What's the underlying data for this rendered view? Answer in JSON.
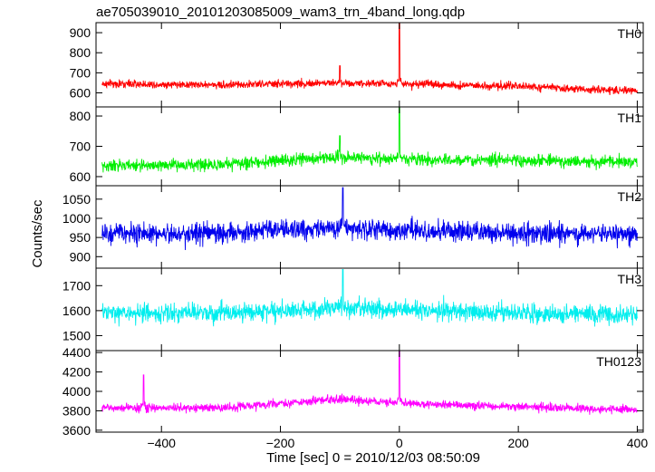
{
  "chart_data": {
    "type": "line",
    "title": "ae705039010_20101203085009_wam3_trn_4band_long.qdp",
    "xlabel": "Time [sec] 0 = 2010/12/03 08:50:09",
    "ylabel": "Counts/sec",
    "xlim": [
      -510,
      410
    ],
    "x_ticks": [
      -400,
      -200,
      0,
      200,
      400
    ],
    "x_tick_labels": [
      "−400",
      "−200",
      "0",
      "200",
      "400"
    ],
    "panels": [
      {
        "label": "TH0",
        "color": "#ff0000",
        "ylim": [
          530,
          950
        ],
        "y_ticks": [
          600,
          700,
          800,
          900
        ],
        "y_tick_labels": [
          "600",
          "700",
          "800",
          "900"
        ],
        "series": {
          "baseline_points": [
            [
              -500,
              645
            ],
            [
              -300,
              640
            ],
            [
              -100,
              650
            ],
            [
              0,
              645
            ],
            [
              200,
              632
            ],
            [
              400,
              608
            ]
          ],
          "noise_amplitude": 22,
          "spikes": [
            [
              -100,
              735
            ],
            [
              0,
              945
            ]
          ]
        }
      },
      {
        "label": "TH1",
        "color": "#00ee00",
        "ylim": [
          570,
          830
        ],
        "y_ticks": [
          600,
          700,
          800
        ],
        "y_tick_labels": [
          "600",
          "700",
          "800"
        ],
        "series": {
          "baseline_points": [
            [
              -500,
              635
            ],
            [
              -300,
              640
            ],
            [
              -100,
              665
            ],
            [
              0,
              658
            ],
            [
              200,
              652
            ],
            [
              400,
              648
            ]
          ],
          "noise_amplitude": 22,
          "spikes": [
            [
              -100,
              735
            ],
            [
              0,
              830
            ]
          ]
        }
      },
      {
        "label": "TH2",
        "color": "#0000ee",
        "ylim": [
          870,
          1085
        ],
        "y_ticks": [
          900,
          950,
          1000,
          1050
        ],
        "y_tick_labels": [
          "900",
          "950",
          "1000",
          "1050"
        ],
        "series": {
          "baseline_points": [
            [
              -500,
              960
            ],
            [
              -300,
              962
            ],
            [
              -100,
              975
            ],
            [
              0,
              968
            ],
            [
              200,
              962
            ],
            [
              400,
              958
            ]
          ],
          "noise_amplitude": 30,
          "spikes": [
            [
              -95,
              1080
            ]
          ]
        }
      },
      {
        "label": "TH3",
        "color": "#00eeee",
        "ylim": [
          1440,
          1770
        ],
        "y_ticks": [
          1500,
          1600,
          1700
        ],
        "y_tick_labels": [
          "1500",
          "1600",
          "1700"
        ],
        "series": {
          "baseline_points": [
            [
              -500,
              1590
            ],
            [
              -300,
              1590
            ],
            [
              -100,
              1610
            ],
            [
              0,
              1605
            ],
            [
              200,
              1590
            ],
            [
              400,
              1580
            ]
          ],
          "noise_amplitude": 42,
          "spikes": [
            [
              -95,
              1765
            ]
          ]
        }
      },
      {
        "label": "TH0123",
        "color": "#ff00ff",
        "ylim": [
          3580,
          4420
        ],
        "y_ticks": [
          3600,
          3800,
          4000,
          4200,
          4400
        ],
        "y_tick_labels": [
          "3600",
          "3800",
          "4000",
          "4200",
          "4400"
        ],
        "series": {
          "baseline_points": [
            [
              -500,
              3830
            ],
            [
              -300,
              3830
            ],
            [
              -100,
              3920
            ],
            [
              0,
              3880
            ],
            [
              200,
              3840
            ],
            [
              400,
              3810
            ]
          ],
          "noise_amplitude": 50,
          "spikes": [
            [
              -430,
              4170
            ],
            [
              0,
              4420
            ]
          ]
        }
      }
    ]
  }
}
